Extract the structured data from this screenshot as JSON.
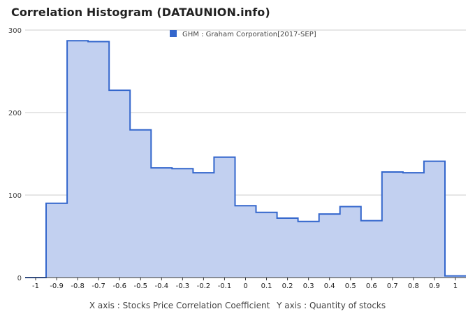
{
  "title": "Correlation Histogram (DATAUNION.info)",
  "colors": {
    "line": "#3366cc",
    "fill": "#c2d0f0",
    "grid": "#cccccc",
    "axis": "#333333",
    "text": "#444444"
  },
  "chart_data": {
    "type": "area",
    "step": true,
    "legend": {
      "position": "top-center",
      "label": "GHM : Graham Corporation[2017-SEP]"
    },
    "xlim": [
      -1.05,
      1.05
    ],
    "ylim": [
      0,
      300
    ],
    "yticks": [
      0,
      100,
      200,
      300
    ],
    "xticks": [
      -1,
      -0.9,
      -0.8,
      -0.7,
      -0.6,
      -0.5,
      -0.4,
      -0.3,
      -0.2,
      -0.1,
      0,
      0.1,
      0.2,
      0.3,
      0.4,
      0.5,
      0.6,
      0.7,
      0.8,
      0.9,
      1
    ],
    "xlabel": "X axis : Stocks Price Correlation Coefficient",
    "ylabel": "Y axis : Quantity of stocks",
    "series": [
      {
        "name": "GHM : Graham Corporation[2017-SEP]",
        "x": [
          -1,
          -0.9,
          -0.8,
          -0.7,
          -0.6,
          -0.5,
          -0.4,
          -0.3,
          -0.2,
          -0.1,
          0,
          0.1,
          0.2,
          0.3,
          0.4,
          0.5,
          0.6,
          0.7,
          0.8,
          0.9,
          1
        ],
        "values": [
          0,
          90,
          287,
          286,
          227,
          179,
          133,
          132,
          127,
          146,
          87,
          79,
          72,
          68,
          77,
          86,
          69,
          128,
          127,
          141,
          2
        ]
      }
    ]
  }
}
